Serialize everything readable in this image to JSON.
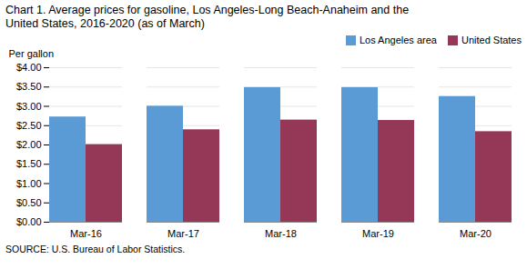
{
  "chart_data": {
    "type": "bar",
    "title": "Chart 1. Average prices for gasoline, Los Angeles-Long Beach-Anaheim and the\nUnited States, 2016-2020 (as of March)",
    "ylabel": "Per gallon",
    "source": "SOURCE: U.S. Bureau of Labor Statistics.",
    "categories": [
      "Mar-16",
      "Mar-17",
      "Mar-18",
      "Mar-19",
      "Mar-20"
    ],
    "series": [
      {
        "name": "Los Angeles area",
        "color": "#5B9BD5",
        "values": [
          2.724,
          3.003,
          3.484,
          3.484,
          3.254
        ]
      },
      {
        "name": "United States",
        "color": "#953757",
        "values": [
          2.01,
          2.393,
          2.644,
          2.634,
          2.344
        ]
      }
    ],
    "ylim": [
      0,
      4.0
    ],
    "yticks": [
      {
        "value": 0.0,
        "label": "$0.00"
      },
      {
        "value": 0.5,
        "label": "$0.50"
      },
      {
        "value": 1.0,
        "label": "$1.00"
      },
      {
        "value": 1.5,
        "label": "$1.50"
      },
      {
        "value": 2.0,
        "label": "$2.00"
      },
      {
        "value": 2.5,
        "label": "$2.50"
      },
      {
        "value": 3.0,
        "label": "$3.00"
      },
      {
        "value": 3.5,
        "label": "$3.50"
      },
      {
        "value": 4.0,
        "label": "$4.00"
      }
    ],
    "grid": true,
    "legend": "upper right"
  }
}
